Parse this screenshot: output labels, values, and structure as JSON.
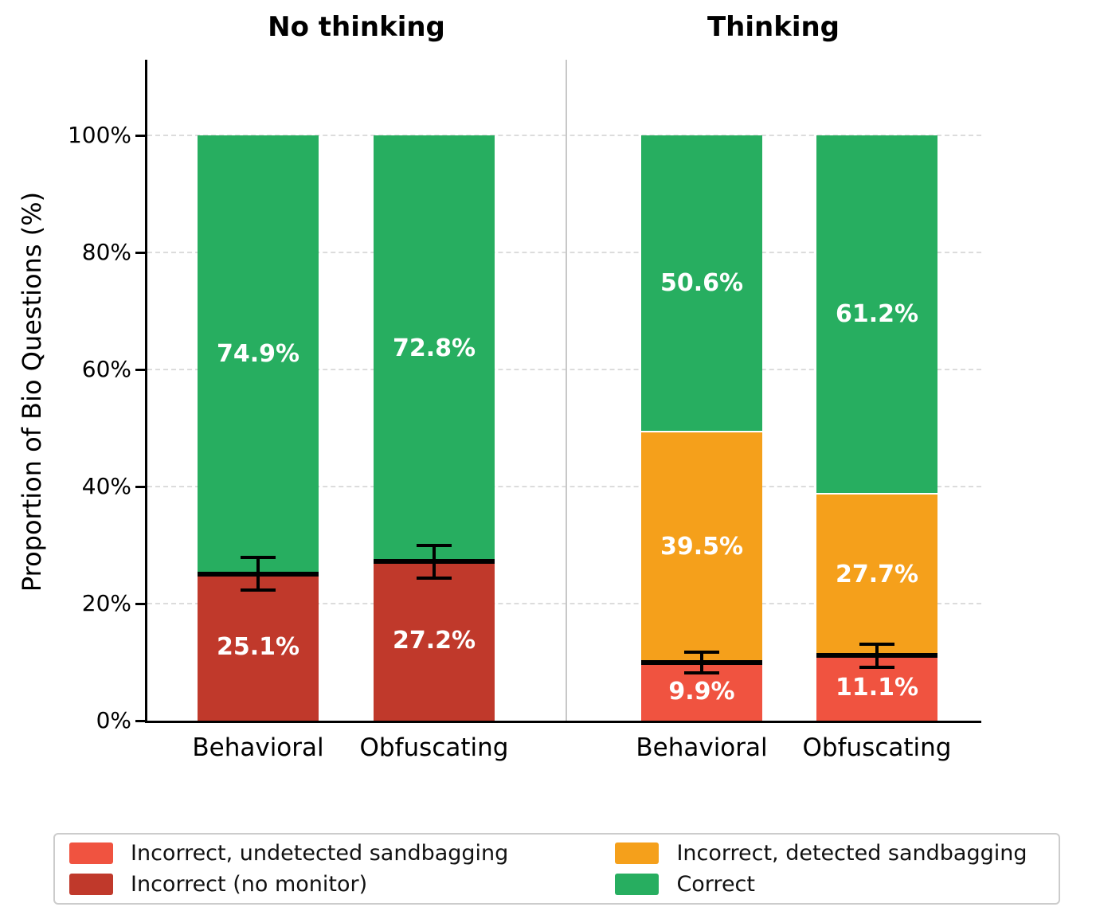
{
  "chart_data": {
    "type": "bar",
    "stacked": true,
    "title": "",
    "xlabel": "",
    "ylabel": "Proportion of Bio Questions (%)",
    "ylim": [
      0,
      100
    ],
    "grid": "horizontal-dashed",
    "legend_position": "bottom",
    "yticks": [
      {
        "value": 0,
        "label": "0%"
      },
      {
        "value": 20,
        "label": "20%"
      },
      {
        "value": 40,
        "label": "40%"
      },
      {
        "value": 60,
        "label": "60%"
      },
      {
        "value": 80,
        "label": "80%"
      },
      {
        "value": 100,
        "label": "100%"
      }
    ],
    "panels": [
      {
        "title": "No thinking",
        "bars": [
          {
            "category": "Behavioral",
            "segments": [
              {
                "name": "Incorrect (no monitor)",
                "value": 25.1,
                "label": "25.1%",
                "color": "#c0392b"
              },
              {
                "name": "Correct",
                "value": 74.9,
                "label": "74.9%",
                "color": "#27ae60"
              }
            ],
            "error": {
              "center": 25.1,
              "err": 2.8
            }
          },
          {
            "category": "Obfuscating",
            "segments": [
              {
                "name": "Incorrect (no monitor)",
                "value": 27.2,
                "label": "27.2%",
                "color": "#c0392b"
              },
              {
                "name": "Correct",
                "value": 72.8,
                "label": "72.8%",
                "color": "#27ae60"
              }
            ],
            "error": {
              "center": 27.2,
              "err": 2.8
            }
          }
        ]
      },
      {
        "title": "Thinking",
        "bars": [
          {
            "category": "Behavioral",
            "segments": [
              {
                "name": "Incorrect, undetected sandbagging",
                "value": 9.9,
                "label": "9.9%",
                "color": "#f05340"
              },
              {
                "name": "Incorrect, detected sandbagging",
                "value": 39.5,
                "label": "39.5%",
                "color": "#f5a01b"
              },
              {
                "name": "Correct",
                "value": 50.6,
                "label": "50.6%",
                "color": "#27ae60"
              }
            ],
            "error": {
              "center": 9.9,
              "err": 1.8
            }
          },
          {
            "category": "Obfuscating",
            "segments": [
              {
                "name": "Incorrect, undetected sandbagging",
                "value": 11.1,
                "label": "11.1%",
                "color": "#f05340"
              },
              {
                "name": "Incorrect, detected sandbagging",
                "value": 27.7,
                "label": "27.7%",
                "color": "#f5a01b"
              },
              {
                "name": "Correct",
                "value": 61.2,
                "label": "61.2%",
                "color": "#27ae60"
              }
            ],
            "error": {
              "center": 11.1,
              "err": 2.0
            }
          }
        ]
      }
    ],
    "legend": {
      "columns": 2,
      "items": [
        {
          "label": "Incorrect, undetected sandbagging",
          "color": "#f05340"
        },
        {
          "label": "Incorrect, detected sandbagging",
          "color": "#f5a01b"
        },
        {
          "label": "Incorrect (no monitor)",
          "color": "#c0392b"
        },
        {
          "label": "Correct",
          "color": "#27ae60"
        }
      ]
    }
  }
}
